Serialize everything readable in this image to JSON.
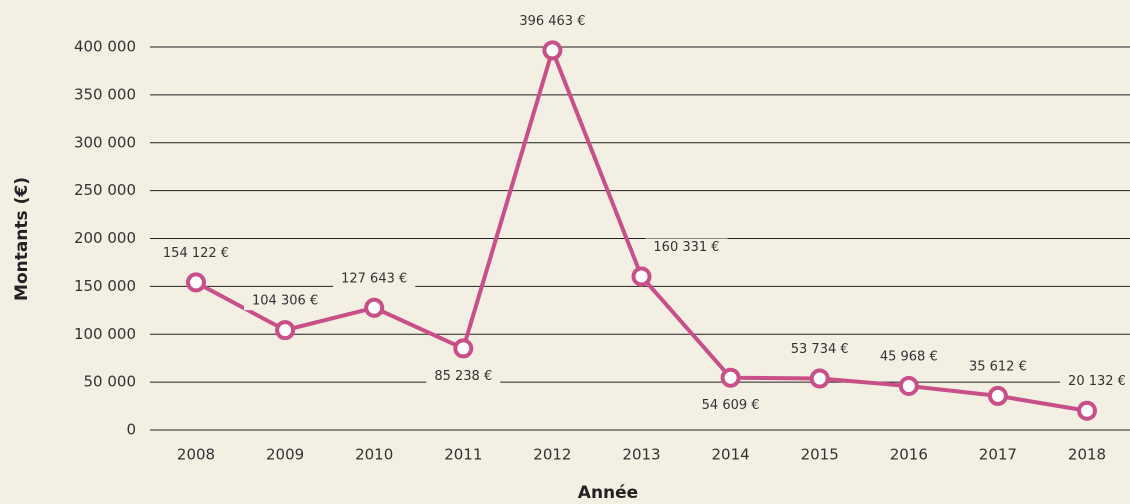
{
  "chart_data": {
    "type": "line",
    "x_label": "Année",
    "y_label": "Montants (€)",
    "categories": [
      "2008",
      "2009",
      "2010",
      "2011",
      "2012",
      "2013",
      "2014",
      "2015",
      "2016",
      "2017",
      "2018"
    ],
    "series": [
      {
        "name": "Montants",
        "color": "#c94f88",
        "values": [
          154122,
          104306,
          127643,
          85238,
          396463,
          160331,
          54609,
          53734,
          45968,
          35612,
          20132
        ],
        "value_labels": [
          "154 122 €",
          "104 306 €",
          "127 643 €",
          "85 238 €",
          "396 463 €",
          "160 331 €",
          "54 609 €",
          "53 734 €",
          "45 968 €",
          "35 612 €",
          "20 132 €"
        ]
      }
    ],
    "ylim": [
      0,
      400000
    ],
    "yticks": [
      0,
      {
        "value": 50000,
        "label": "50 000"
      },
      {
        "value": 100000,
        "label": "100 000"
      },
      {
        "value": 150000,
        "label": "150 000"
      },
      {
        "value": 200000,
        "label": "200 000"
      },
      {
        "value": 250000,
        "label": "250 000"
      },
      {
        "value": 300000,
        "label": "300 000"
      },
      {
        "value": 350000,
        "label": "350 000"
      },
      {
        "value": 400000,
        "label": "400 000"
      }
    ],
    "grid": true
  }
}
